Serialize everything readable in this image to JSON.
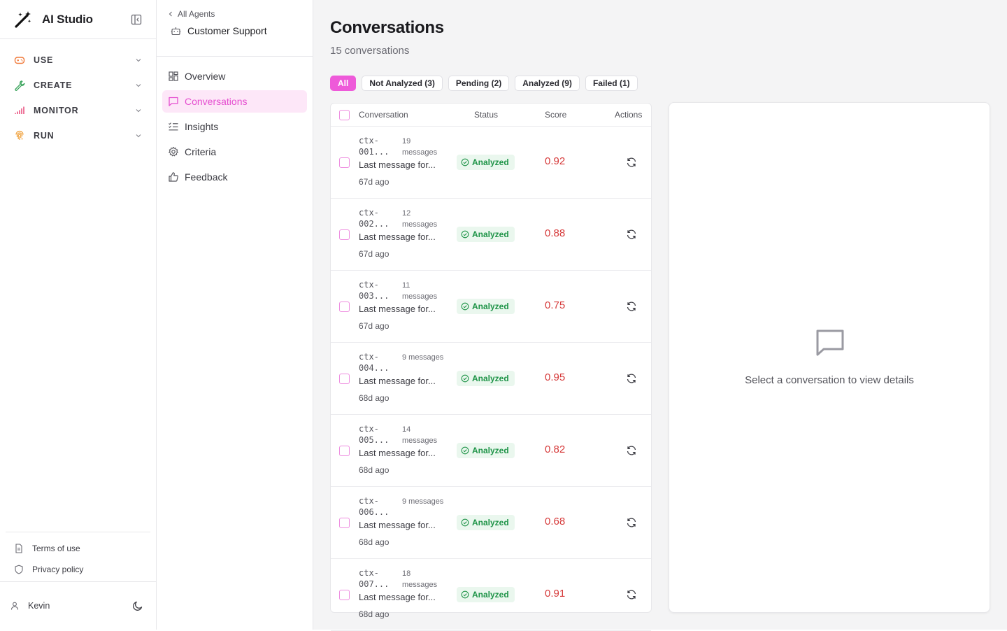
{
  "app": {
    "title": "AI Studio"
  },
  "nav": [
    {
      "label": "USE",
      "icon": "gamepad-icon",
      "color": "#f07a3a"
    },
    {
      "label": "CREATE",
      "icon": "wrench-icon",
      "color": "#3aa45c"
    },
    {
      "label": "MONITOR",
      "icon": "signal-bars-icon",
      "color": "#e84a7a"
    },
    {
      "label": "RUN",
      "icon": "fingerprint-icon",
      "color": "#f0a03a"
    }
  ],
  "footer": {
    "terms": "Terms of use",
    "privacy": "Privacy policy",
    "user": "Kevin"
  },
  "agent": {
    "back_label": "All Agents",
    "name": "Customer Support",
    "items": [
      {
        "label": "Overview",
        "icon": "grid-icon"
      },
      {
        "label": "Conversations",
        "icon": "message-icon",
        "active": true
      },
      {
        "label": "Insights",
        "icon": "list-check-icon"
      },
      {
        "label": "Criteria",
        "icon": "gear-icon"
      },
      {
        "label": "Feedback",
        "icon": "thumbs-up-icon"
      }
    ]
  },
  "page": {
    "title": "Conversations",
    "subtitle": "15 conversations"
  },
  "filters": [
    "All",
    "Not Analyzed (3)",
    "Pending (2)",
    "Analyzed (9)",
    "Failed (1)"
  ],
  "table": {
    "headers": {
      "conversation": "Conversation",
      "status": "Status",
      "score": "Score",
      "actions": "Actions"
    },
    "rows": [
      {
        "id": "ctx-001...",
        "messages": "19 messages",
        "last": "Last message for...",
        "ago": "67d ago",
        "status": "Analyzed",
        "score": "0.92"
      },
      {
        "id": "ctx-002...",
        "messages": "12 messages",
        "last": "Last message for...",
        "ago": "67d ago",
        "status": "Analyzed",
        "score": "0.88"
      },
      {
        "id": "ctx-003...",
        "messages": "11 messages",
        "last": "Last message for...",
        "ago": "67d ago",
        "status": "Analyzed",
        "score": "0.75"
      },
      {
        "id": "ctx-004...",
        "messages": "9 messages",
        "last": "Last message for...",
        "ago": "68d ago",
        "status": "Analyzed",
        "score": "0.95"
      },
      {
        "id": "ctx-005...",
        "messages": "14 messages",
        "last": "Last message for...",
        "ago": "68d ago",
        "status": "Analyzed",
        "score": "0.82"
      },
      {
        "id": "ctx-006...",
        "messages": "9 messages",
        "last": "Last message for...",
        "ago": "68d ago",
        "status": "Analyzed",
        "score": "0.68"
      },
      {
        "id": "ctx-007...",
        "messages": "18 messages",
        "last": "Last message for...",
        "ago": "68d ago",
        "status": "Analyzed",
        "score": "0.91"
      }
    ]
  },
  "detail": {
    "empty_text": "Select a conversation to view details"
  },
  "colors": {
    "accent": "#ee5ad9",
    "success": "#1f9448",
    "score": "#d63a3a"
  }
}
